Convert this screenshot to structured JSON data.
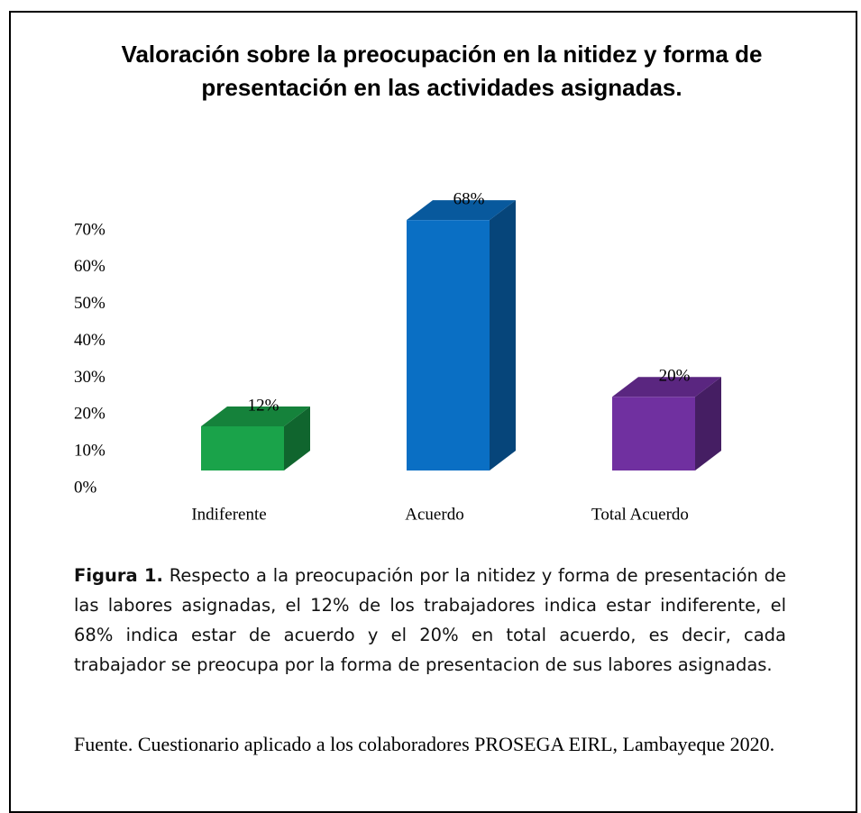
{
  "chart_data": {
    "type": "bar3d",
    "title": "Valoración sobre la preocupación en la nitidez y forma de presentación en las actividades asignadas.",
    "categories": [
      "Indiferente",
      "Acuerdo",
      "Total Acuerdo"
    ],
    "values": [
      12,
      68,
      20
    ],
    "value_labels": [
      "12%",
      "68%",
      "20%"
    ],
    "colors": [
      "#1aa34a",
      "#0a6fc4",
      "#7030a0"
    ],
    "ylim": [
      0,
      70
    ],
    "yticks": [
      {
        "value": 0,
        "label": "0%"
      },
      {
        "value": 10,
        "label": "10%"
      },
      {
        "value": 20,
        "label": "20%"
      },
      {
        "value": 30,
        "label": "30%"
      },
      {
        "value": 40,
        "label": "40%"
      },
      {
        "value": 50,
        "label": "50%"
      },
      {
        "value": 60,
        "label": "60%"
      },
      {
        "value": 70,
        "label": "70%"
      }
    ]
  },
  "caption": {
    "label": "Figura 1.",
    "text": " Respecto a la preocupación por la nitidez y forma de presentación de las labores asignadas, el 12% de los trabajadores indica estar indiferente, el 68% indica estar de acuerdo y el 20% en total acuerdo, es decir, cada trabajador se preocupa por la forma de presentacion de sus labores asignadas."
  },
  "source": "Fuente. Cuestionario aplicado a los colaboradores PROSEGA EIRL, Lambayeque 2020."
}
